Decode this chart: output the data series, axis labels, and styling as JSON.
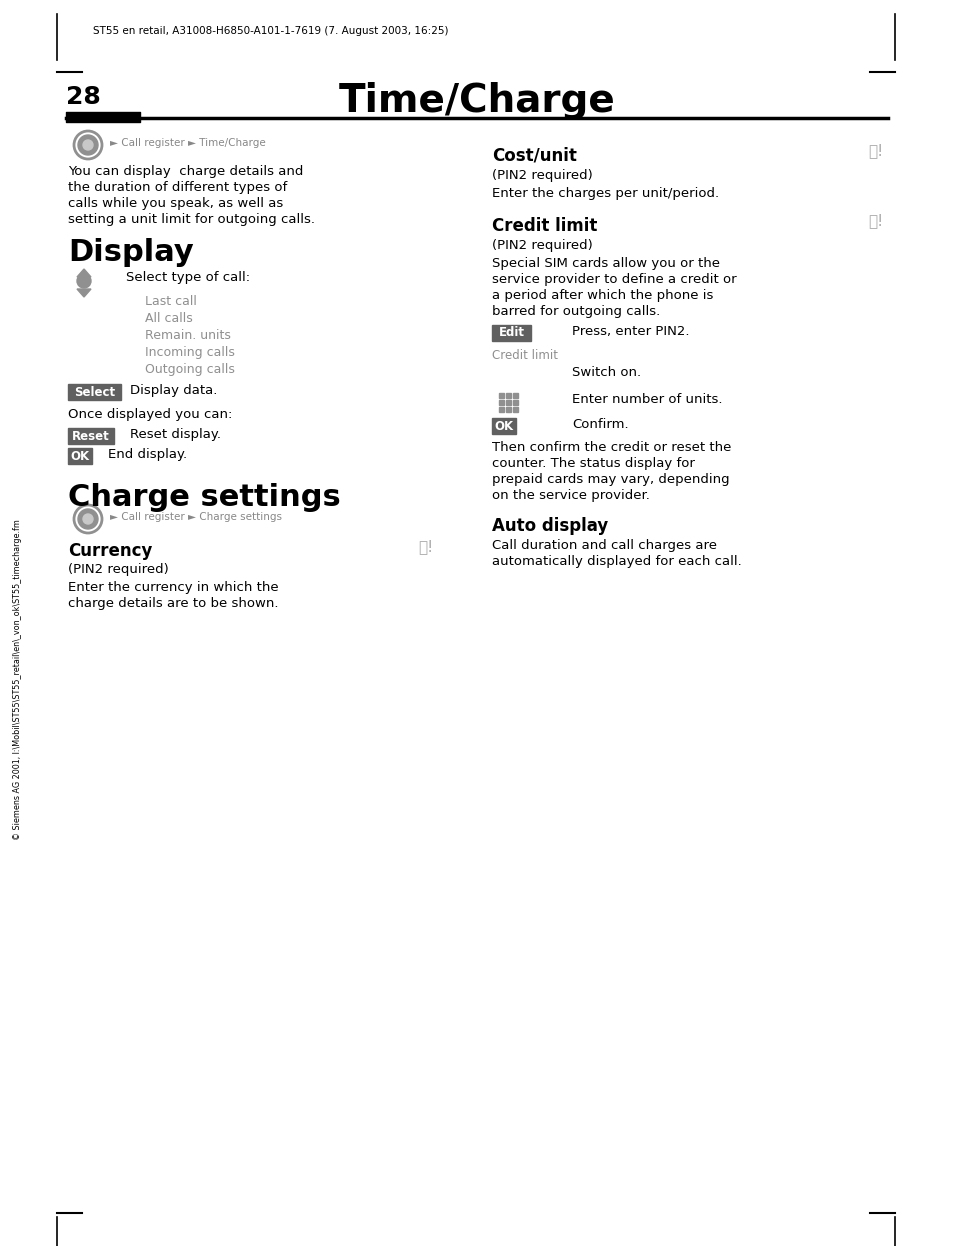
{
  "header_text": "ST55 en retail, A31008-H6850-A101-1-7619 (7. August 2003, 16:25)",
  "page_number": "28",
  "main_title": "Time/Charge",
  "bg_color": "#ffffff",
  "gray_text": "#888888",
  "btn_color": "#606060",
  "sidebar_text": "© Siemens AG 2001, I:\\Mobil\\ST55\\ST55_retail\\en\\_von_ok\\ST55_timecharge.fm",
  "left_nav_text": "► Call register ► Time/Charge",
  "intro_text": "You can display  charge details and\nthe duration of different types of\ncalls while you speak, as well as\nsetting a unit limit for outgoing calls.",
  "display_heading": "Display",
  "select_type_text": "Select type of call:",
  "call_types": [
    "Last call",
    "All calls",
    "Remain. units",
    "Incoming calls",
    "Outgoing calls"
  ],
  "select_btn": "Select",
  "select_text": "Display data.",
  "once_text": "Once displayed you can:",
  "reset_btn": "Reset",
  "reset_text": "Reset display.",
  "ok_btn1": "OK",
  "ok_text1": "End display.",
  "charge_heading": "Charge settings",
  "charge_nav_text": "► Call register ► Charge settings",
  "currency_heading": "Currency",
  "currency_pin": "(PIN2 required)",
  "currency_text": "Enter the currency in which the\ncharge details are to be shown.",
  "costunit_heading": "Cost/unit",
  "costunit_pin": "(PIN2 required)",
  "costunit_text": "Enter the charges per unit/period.",
  "creditlimit_heading": "Credit limit",
  "creditlimit_pin": "(PIN2 required)",
  "creditlimit_text": "Special SIM cards allow you or the\nservice provider to define a credit or\na period after which the phone is\nbarred for outgoing calls.",
  "edit_btn": "Edit",
  "edit_text": "Press, enter PIN2.",
  "creditlimit_label": "Credit limit",
  "switch_text": "Switch on.",
  "keypad_text": "Enter number of units.",
  "ok_btn2": "OK",
  "ok_text2": "Confirm.",
  "then_text": "Then confirm the credit or reset the\ncounter. The status display for\nprepaid cards may vary, depending\non the service provider.",
  "autodisplay_heading": "Auto display",
  "autodisplay_text": "Call duration and call charges are\nautomatically displayed for each call."
}
